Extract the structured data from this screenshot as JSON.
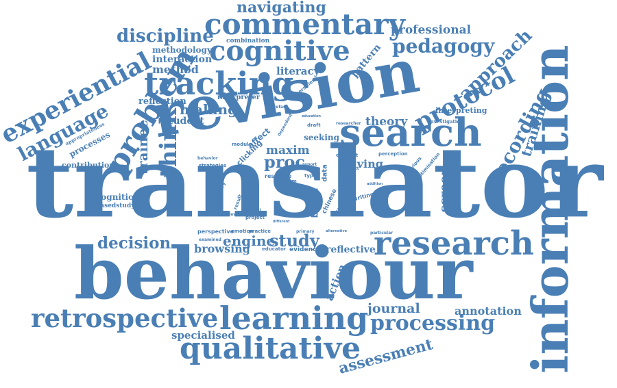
{
  "cloud": {
    "color": "#4a7fb5",
    "words": {
      "translator": "translator",
      "behaviour": "behaviour",
      "revision": "revision",
      "information": "information",
      "search": "search",
      "research": "research",
      "learning": "learning",
      "retrospective": "retrospective",
      "qualitative": "qualitative",
      "commentary": "commentary",
      "cognitive": "cognitive",
      "tracking": "tracking",
      "problem": "problem",
      "experiential": "experiential",
      "language": "language",
      "think": "think",
      "trainee": "trainee",
      "protocol": "protocol",
      "approach": "approach",
      "recording": "recording",
      "training": "training",
      "pedagogy": "pedagogy",
      "professional": "professional",
      "navigating": "navigating",
      "discipline": "discipline",
      "methodology": "methodology",
      "interaction": "interaction",
      "method": "method",
      "literacy": "literacy",
      "combination": "combination",
      "pattern": "pattern",
      "reflection": "reflection",
      "making": "making",
      "student": "student",
      "interpreter": "interpreter",
      "theory": "theory",
      "interpreting": "interpreting",
      "investigation": "investigation",
      "seeking": "seeking",
      "maxim": "maxim",
      "proc": "proc",
      "solving": "solving",
      "screen": "screen",
      "decision": "decision",
      "engine": "engine",
      "study": "study",
      "browsing": "browsing",
      "reflective": "reflective",
      "action": "action",
      "journal": "journal",
      "processing": "processing",
      "annotation": "annotation",
      "assessment": "assessment",
      "specialised": "specialised",
      "cognition": "cognition",
      "basedstudy": "basedstudy",
      "contribution": "contribution",
      "processes": "processes",
      "appropriateness": "appropriateness",
      "affect": "affect",
      "data": "data",
      "based": "based",
      "module": "module",
      "clicking": "clicking",
      "strategies": "strategies",
      "behavior": "behavior",
      "resource": "resource",
      "term": "term",
      "type": "type",
      "art": "art",
      "perspective": "perspective",
      "emotion": "emotion",
      "practice": "practice",
      "examined": "examined",
      "educator": "educator",
      "evidence": "evidence",
      "primary": "primary",
      "social": "social",
      "project": "project",
      "interview": "interview",
      "secondary": "secondary",
      "result": "result",
      "chinese": "chinese",
      "studies": "studies",
      "writing": "writing",
      "element": "element",
      "perception": "perception",
      "previous": "previous",
      "optimisation": "optimisation",
      "universities": "universities",
      "preface": "preface",
      "dependent": "dependent",
      "draft": "draft",
      "researcher": "researcher",
      "education": "education",
      "report": "report",
      "particular": "particular",
      "alternative": "alternative",
      "addition": "addition",
      "context": "context",
      "different": "different"
    }
  }
}
